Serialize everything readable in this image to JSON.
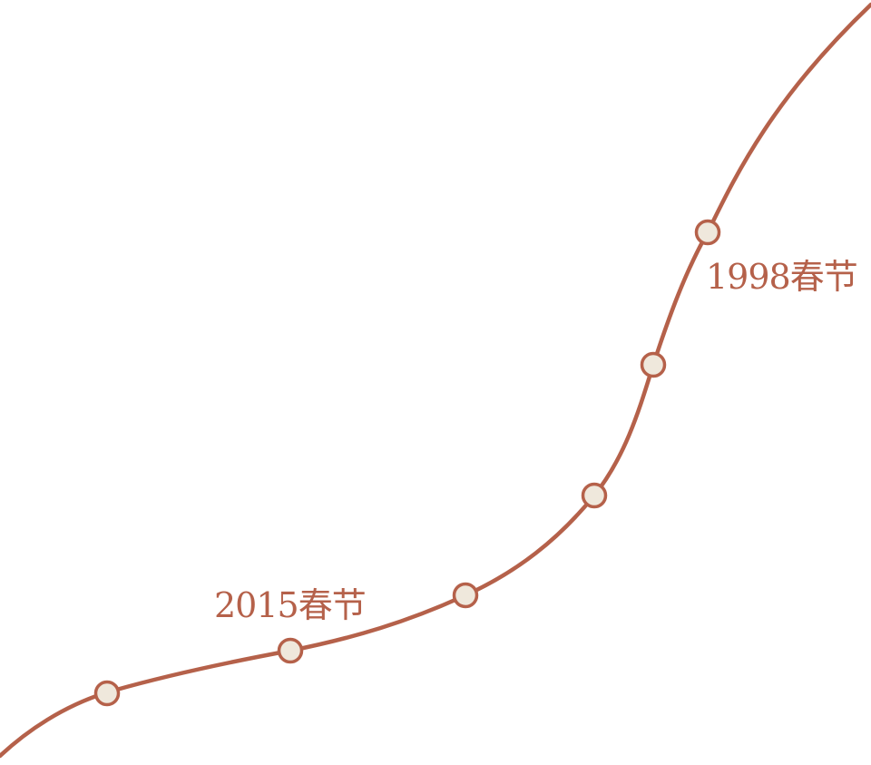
{
  "labels": {
    "upper": "1998春节",
    "lower": "2015春节"
  },
  "colors": {
    "line": "#b5614a",
    "dot_fill": "#efe8dc",
    "label": "#b5614a"
  },
  "milestones": [
    {
      "name": "milestone-1"
    },
    {
      "name": "milestone-2"
    },
    {
      "name": "milestone-3"
    },
    {
      "name": "milestone-4"
    },
    {
      "name": "milestone-5"
    },
    {
      "name": "milestone-6"
    }
  ]
}
